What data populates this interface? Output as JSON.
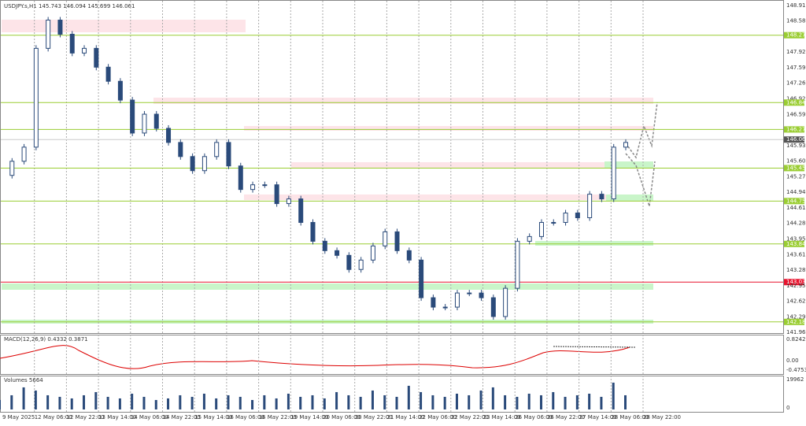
{
  "window": {
    "title": "USDJPY.s,H1 145.743 146.094 145.699 146.061"
  },
  "price_axis": {
    "labels": [
      "148.910",
      "148.580",
      "148.279",
      "147.920",
      "147.590",
      "147.260",
      "146.925",
      "146.847",
      "146.595",
      "146.276",
      "146.061",
      "145.935",
      "145.605",
      "145.455",
      "145.270",
      "144.940",
      "144.754",
      "144.610",
      "144.280",
      "143.950",
      "143.843",
      "143.615",
      "143.285",
      "143.032",
      "142.955",
      "142.625",
      "142.295",
      "142.186",
      "141.965"
    ],
    "green_levels": [
      148.279,
      146.847,
      146.276,
      145.455,
      144.754,
      143.843,
      142.186
    ],
    "red_level": 143.032,
    "current": 146.061,
    "range": [
      141.965,
      148.91
    ]
  },
  "time_axis": {
    "labels": [
      "9 May 2025",
      "12 May 06:00",
      "12 May 22:00",
      "13 May 14:00",
      "14 May 06:00",
      "14 May 22:00",
      "15 May 14:00",
      "16 May 06:00",
      "16 May 22:00",
      "19 May 14:00",
      "20 May 06:00",
      "20 May 22:00",
      "21 May 14:00",
      "22 May 06:00",
      "22 May 22:00",
      "23 May 14:00",
      "26 May 06:00",
      "26 May 22:00",
      "27 May 14:00",
      "28 May 06:00",
      "28 May 22:00"
    ]
  },
  "price": {
    "close": [
      145.3,
      145.6,
      145.9,
      148.0,
      148.6,
      148.3,
      147.9,
      148.0,
      147.6,
      147.3,
      146.9,
      146.2,
      146.6,
      146.3,
      146.0,
      145.7,
      145.4,
      145.7,
      146.0,
      145.5,
      145.0,
      145.1,
      145.1,
      144.7,
      144.8,
      144.3,
      143.9,
      143.7,
      143.6,
      143.3,
      143.5,
      143.8,
      144.1,
      143.7,
      143.5,
      142.7,
      142.5,
      142.5,
      142.8,
      142.8,
      142.7,
      142.3,
      142.9,
      143.9,
      144.0,
      144.3,
      144.3,
      144.5,
      144.4,
      144.9,
      144.8,
      145.9,
      146.0
    ]
  },
  "macd": {
    "label": "MACD(12,26,9) 0.4332 0.3871",
    "axis": [
      "0.8242",
      "0.00",
      "-0.4753"
    ]
  },
  "volume": {
    "label": "Volumes 5664",
    "axis": [
      "19962",
      "0"
    ],
    "range": [
      0,
      19962
    ],
    "values": [
      6000,
      9000,
      14000,
      12000,
      9000,
      8000,
      7000,
      9000,
      11000,
      8000,
      7000,
      10000,
      8000,
      6000,
      7000,
      9000,
      8000,
      10000,
      7000,
      9000,
      8000,
      6000,
      9000,
      7000,
      10000,
      8000,
      9000,
      7000,
      11000,
      9000,
      8000,
      12000,
      9000,
      8000,
      15000,
      11000,
      9000,
      8000,
      10000,
      9000,
      12000,
      14000,
      9000,
      8000,
      10000,
      9000,
      11000,
      8000,
      9000,
      10000,
      8000,
      17000,
      9000
    ]
  }
}
